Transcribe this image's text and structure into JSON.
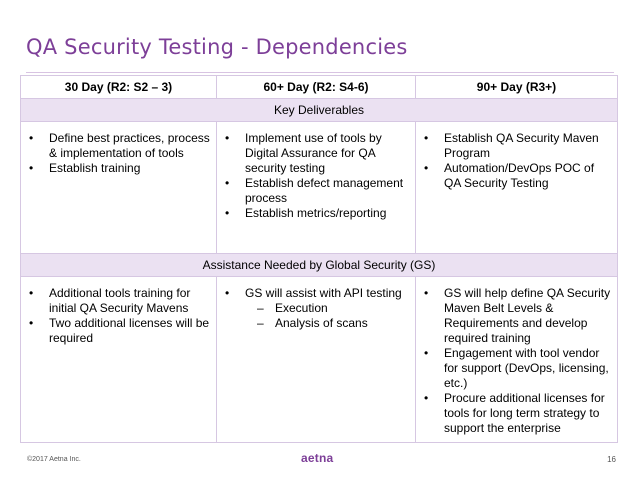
{
  "title": "QA Security Testing - Dependencies",
  "columns": [
    "30 Day (R2: S2 – 3)",
    "60+ Day (R2: S4-6)",
    "90+ Day (R3+)"
  ],
  "sections": [
    {
      "label": "Key Deliverables",
      "cells": [
        [
          "Define best practices, process & implementation of tools",
          "Establish training"
        ],
        [
          "Implement use of tools by Digital Assurance for QA security testing",
          "Establish defect management process",
          "Establish metrics/reporting"
        ],
        [
          "Establish QA Security Maven Program",
          "Automation/DevOps POC of QA Security Testing"
        ]
      ]
    },
    {
      "label": "Assistance Needed by Global Security (GS)",
      "cells": [
        [
          "Additional tools training for initial QA Security Mavens",
          "Two additional licenses will be required"
        ],
        [
          "GS will assist with API testing"
        ],
        [
          "GS will help define QA Security Maven Belt Levels & Requirements and develop required training",
          "Engagement with tool vendor for support (DevOps, licensing, etc.)",
          "Procure additional licenses for tools for long term strategy to support the  enterprise"
        ]
      ],
      "sub_items": [
        "Execution",
        "Analysis of scans"
      ]
    }
  ],
  "footer": {
    "copyright": "©2017 Aetna Inc.",
    "logo": "aetna",
    "page": "16"
  },
  "colors": {
    "accent": "#7d3f98",
    "band": "#ebe1f2",
    "border": "#d6c7e2"
  }
}
